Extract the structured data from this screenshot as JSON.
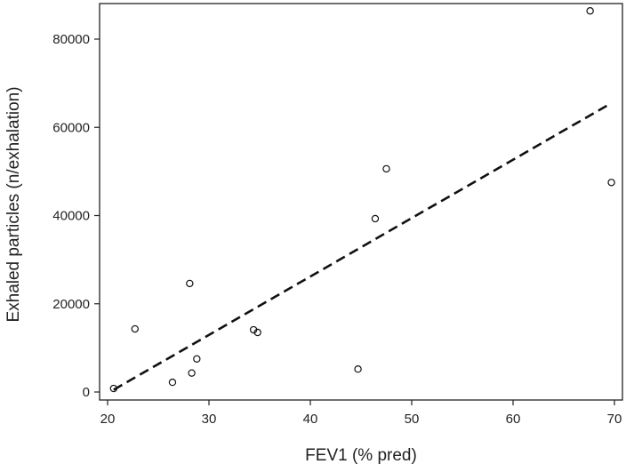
{
  "chart_data": {
    "type": "scatter",
    "title": "",
    "xlabel": "FEV1 (% pred)",
    "ylabel": "Exhaled particles (n/exhalation)",
    "xlim": [
      19,
      71
    ],
    "ylim": [
      -2000,
      88500
    ],
    "xticks": [
      20,
      30,
      40,
      50,
      60,
      70
    ],
    "yticks": [
      0,
      20000,
      40000,
      60000,
      80000
    ],
    "grid": false,
    "points": [
      {
        "x": 20.6,
        "y": 800
      },
      {
        "x": 22.7,
        "y": 14300
      },
      {
        "x": 26.4,
        "y": 2200
      },
      {
        "x": 28.1,
        "y": 24600
      },
      {
        "x": 28.3,
        "y": 4300
      },
      {
        "x": 28.8,
        "y": 7500
      },
      {
        "x": 34.4,
        "y": 14100
      },
      {
        "x": 34.8,
        "y": 13500
      },
      {
        "x": 44.7,
        "y": 5200
      },
      {
        "x": 46.4,
        "y": 39300
      },
      {
        "x": 47.5,
        "y": 50600
      },
      {
        "x": 67.6,
        "y": 86400
      },
      {
        "x": 69.7,
        "y": 47500
      }
    ],
    "trendline": {
      "style": "dashed",
      "x": [
        20.6,
        69.7
      ],
      "y": [
        500,
        65500
      ]
    }
  }
}
